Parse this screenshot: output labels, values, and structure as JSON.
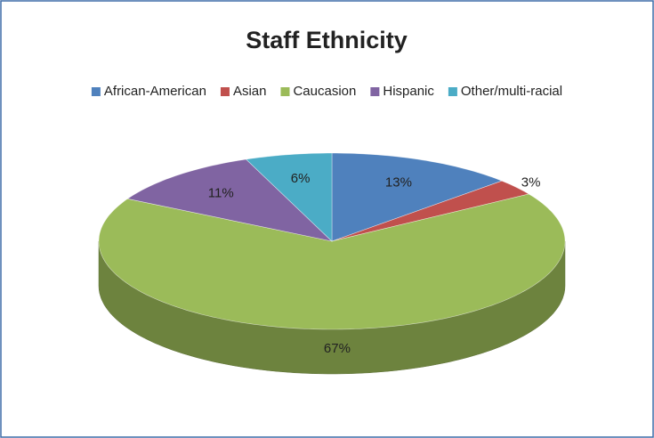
{
  "chart_data": {
    "type": "pie",
    "title": "Staff Ethnicity",
    "categories": [
      "African-American",
      "Asian",
      "Caucasion",
      "Hispanic",
      "Other/multi-racial"
    ],
    "values": [
      13,
      3,
      67,
      11,
      6
    ],
    "value_labels": [
      "13%",
      "3%",
      "67%",
      "11%",
      "6%"
    ],
    "colors": [
      "#4f81bd",
      "#c0504d",
      "#9bbb59",
      "#8064a2",
      "#4bacc6"
    ],
    "legend": "top"
  }
}
